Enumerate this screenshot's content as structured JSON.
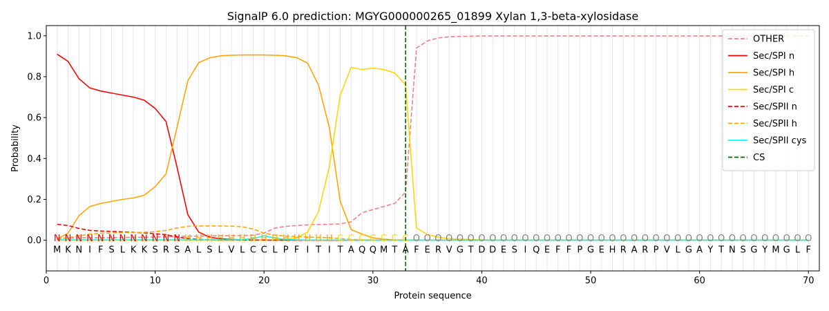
{
  "chart_data": {
    "type": "line",
    "title": "SignalP 6.0 prediction: MGYG000000265_01899 Xylan 1,3-beta-xylosidase",
    "xlabel": "Protein sequence",
    "ylabel": "Probability",
    "xlim": [
      0,
      71
    ],
    "ylim": [
      -0.15,
      1.05
    ],
    "x_ticks": [
      0,
      10,
      20,
      30,
      40,
      50,
      60,
      70
    ],
    "y_ticks": [
      0.0,
      0.2,
      0.4,
      0.6,
      0.8,
      1.0
    ],
    "grid": "vertical lines at each residue",
    "legend_position": "top-right",
    "cleavage_site": 33,
    "sequence": [
      "M",
      "K",
      "N",
      "I",
      "F",
      "S",
      "L",
      "K",
      "K",
      "S",
      "R",
      "S",
      "A",
      "L",
      "S",
      "L",
      "V",
      "L",
      "C",
      "C",
      "L",
      "P",
      "F",
      "I",
      "T",
      "I",
      "T",
      "A",
      "Q",
      "Q",
      "M",
      "T",
      "A",
      "F",
      "E",
      "R",
      "V",
      "G",
      "T",
      "D",
      "D",
      "E",
      "S",
      "I",
      "Q",
      "E",
      "F",
      "F",
      "P",
      "G",
      "E",
      "H",
      "R",
      "A",
      "R",
      "P",
      "V",
      "L",
      "G",
      "A",
      "Y",
      "T",
      "N",
      "S",
      "G",
      "Y",
      "M",
      "G",
      "L",
      "F"
    ],
    "labels": [
      "N",
      "N",
      "N",
      "N",
      "N",
      "N",
      "N",
      "N",
      "N",
      "N",
      "N",
      "N",
      "H",
      "H",
      "H",
      "H",
      "H",
      "H",
      "H",
      "H",
      "H",
      "H",
      "H",
      "H",
      "H",
      "H",
      "C",
      "C",
      "C",
      "C",
      "C",
      "C",
      "C",
      "O",
      "O",
      "O",
      "O",
      "O",
      "O",
      "O",
      "O",
      "O",
      "O",
      "O",
      "O",
      "O",
      "O",
      "O",
      "O",
      "O",
      "O",
      "O",
      "O",
      "O",
      "O",
      "O",
      "O",
      "O",
      "O",
      "O",
      "O",
      "O",
      "O",
      "O",
      "O",
      "O",
      "O",
      "O",
      "O",
      "O"
    ],
    "label_colors": {
      "N": "#ff0000",
      "H": "#ffa500",
      "C": "#ffd700",
      "O": "#808080"
    },
    "series": [
      {
        "name": "OTHER",
        "color": "#f08080",
        "dash": "dashed",
        "values": [
          0.01,
          0.01,
          0.012,
          0.012,
          0.012,
          0.013,
          0.013,
          0.014,
          0.015,
          0.016,
          0.017,
          0.018,
          0.02,
          0.02,
          0.021,
          0.022,
          0.022,
          0.023,
          0.025,
          0.035,
          0.06,
          0.068,
          0.072,
          0.075,
          0.077,
          0.078,
          0.08,
          0.09,
          0.135,
          0.15,
          0.165,
          0.18,
          0.235,
          0.94,
          0.975,
          0.99,
          0.995,
          0.997,
          0.998,
          0.999,
          0.999,
          0.999,
          0.999,
          0.999,
          0.999,
          0.999,
          0.999,
          0.999,
          0.999,
          0.999,
          0.999,
          0.999,
          0.999,
          0.999,
          0.999,
          0.999,
          0.999,
          0.999,
          0.999,
          0.999,
          0.999,
          0.999,
          0.999,
          0.999,
          0.999,
          0.999,
          0.999,
          0.999,
          0.999,
          0.999
        ]
      },
      {
        "name": "Sec/SPI n",
        "color": "#ff0000",
        "dash": "solid",
        "values": [
          0.91,
          0.875,
          0.79,
          0.745,
          0.73,
          0.72,
          0.71,
          0.7,
          0.685,
          0.645,
          0.58,
          0.36,
          0.125,
          0.04,
          0.015,
          0.007,
          0.004,
          0.002,
          0.001,
          0.001,
          0.001,
          0.001,
          0.001,
          0.001,
          0.001,
          0,
          0,
          0,
          0,
          0,
          0,
          0,
          0,
          0,
          0,
          0,
          0,
          0,
          0,
          0,
          0,
          0,
          0,
          0,
          0,
          0,
          0,
          0,
          0,
          0,
          0,
          0,
          0,
          0,
          0,
          0,
          0,
          0,
          0,
          0,
          0,
          0,
          0,
          0,
          0,
          0,
          0,
          0,
          0,
          0
        ]
      },
      {
        "name": "Sec/SPI h",
        "color": "#ffa500",
        "dash": "solid",
        "values": [
          0.005,
          0.035,
          0.12,
          0.165,
          0.18,
          0.19,
          0.2,
          0.207,
          0.22,
          0.262,
          0.325,
          0.55,
          0.78,
          0.868,
          0.892,
          0.902,
          0.905,
          0.906,
          0.906,
          0.906,
          0.905,
          0.902,
          0.893,
          0.866,
          0.76,
          0.55,
          0.19,
          0.052,
          0.03,
          0.012,
          0.005,
          0.002,
          0.001,
          0,
          0,
          0,
          0,
          0,
          0,
          0,
          0,
          0,
          0,
          0,
          0,
          0,
          0,
          0,
          0,
          0,
          0,
          0,
          0,
          0,
          0,
          0,
          0,
          0,
          0,
          0,
          0,
          0,
          0,
          0,
          0,
          0,
          0,
          0,
          0,
          0
        ]
      },
      {
        "name": "Sec/SPI c",
        "color": "#ffd700",
        "dash": "solid",
        "values": [
          0,
          0,
          0,
          0,
          0,
          0,
          0,
          0,
          0,
          0,
          0,
          0,
          0,
          0,
          0,
          0,
          0,
          0,
          0,
          0,
          0.002,
          0.005,
          0.012,
          0.04,
          0.14,
          0.36,
          0.71,
          0.845,
          0.835,
          0.842,
          0.835,
          0.818,
          0.76,
          0.06,
          0.028,
          0.015,
          0.008,
          0.005,
          0.003,
          0.002,
          0.001,
          0.001,
          0.001,
          0.001,
          0.001,
          0,
          0,
          0,
          0,
          0,
          0,
          0,
          0,
          0,
          0,
          0,
          0,
          0,
          0,
          0,
          0,
          0,
          0,
          0,
          0,
          0,
          0,
          0,
          0,
          0
        ]
      },
      {
        "name": "Sec/SPII n",
        "color": "#ff0000",
        "dash": "dashed",
        "values": [
          0.078,
          0.072,
          0.058,
          0.048,
          0.045,
          0.043,
          0.041,
          0.039,
          0.036,
          0.032,
          0.027,
          0.016,
          0.008,
          0.004,
          0.002,
          0.001,
          0.001,
          0.001,
          0.001,
          0.001,
          0,
          0,
          0,
          0,
          0,
          0,
          0,
          0,
          0,
          0,
          0,
          0,
          0,
          0,
          0,
          0,
          0,
          0,
          0,
          0,
          0,
          0,
          0,
          0,
          0,
          0,
          0,
          0,
          0,
          0,
          0,
          0,
          0,
          0,
          0,
          0,
          0,
          0,
          0,
          0,
          0,
          0,
          0,
          0,
          0,
          0,
          0,
          0,
          0,
          0
        ]
      },
      {
        "name": "Sec/SPII h",
        "color": "#ffa500",
        "dash": "dashed",
        "values": [
          0.005,
          0.012,
          0.022,
          0.03,
          0.034,
          0.036,
          0.037,
          0.038,
          0.039,
          0.042,
          0.048,
          0.06,
          0.068,
          0.07,
          0.07,
          0.07,
          0.069,
          0.066,
          0.055,
          0.035,
          0.025,
          0.02,
          0.018,
          0.016,
          0.014,
          0.012,
          0.008,
          0.004,
          0.002,
          0.001,
          0,
          0,
          0,
          0,
          0,
          0,
          0,
          0,
          0,
          0,
          0,
          0,
          0,
          0,
          0,
          0,
          0,
          0,
          0,
          0,
          0,
          0,
          0,
          0,
          0,
          0,
          0,
          0,
          0,
          0,
          0,
          0,
          0,
          0,
          0,
          0,
          0,
          0,
          0,
          0
        ]
      },
      {
        "name": "Sec/SPII cys",
        "color": "#00ffff",
        "dash": "solid",
        "values": [
          0.002,
          0.002,
          0.002,
          0.002,
          0.002,
          0.002,
          0.002,
          0.002,
          0.002,
          0.002,
          0.002,
          0.002,
          0.002,
          0.002,
          0.002,
          0.002,
          0.002,
          0.003,
          0.008,
          0.022,
          0.01,
          0.004,
          0.002,
          0.001,
          0.001,
          0.001,
          0.001,
          0,
          0,
          0,
          0,
          0,
          0,
          0,
          0,
          0,
          0,
          0,
          0,
          0,
          0,
          0,
          0,
          0,
          0,
          0,
          0,
          0,
          0,
          0,
          0,
          0,
          0,
          0,
          0,
          0,
          0,
          0,
          0,
          0,
          0,
          0,
          0,
          0,
          0,
          0,
          0,
          0,
          0,
          0
        ]
      }
    ],
    "cs_series": {
      "name": "CS",
      "color": "#006400",
      "dash": "dashed"
    }
  }
}
